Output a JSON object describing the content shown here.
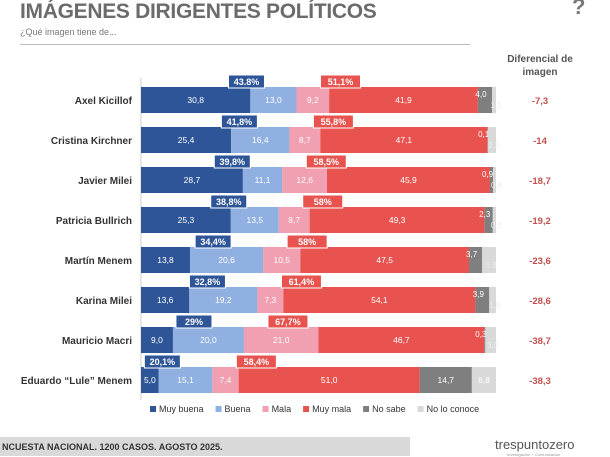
{
  "header": {
    "title": "IMÁGENES DIRIGENTES POLÍTICOS",
    "subtitle": "¿Qué imagen tiene de..."
  },
  "footer": {
    "note": "NCUESTA NACIONAL. 1200 CASOS. AGOSTO 2025.",
    "brand": "trespuntozero",
    "brand_tagline": "Investigación + Comunicación"
  },
  "chart_data": {
    "type": "bar",
    "orientation": "horizontal-stacked-100",
    "diff_header": [
      "Diferencial de",
      "imagen"
    ],
    "categories": [
      "Axel Kicillof",
      "Cristina Kirchner",
      "Javier Milei",
      "Patricia Bullrich",
      "Martín Menem",
      "Karina Milei",
      "Mauricio Macri",
      "Eduardo “Lule” Menem"
    ],
    "series": [
      {
        "name": "Muy buena",
        "color": "#2e5597",
        "values": [
          30.8,
          25.4,
          28.7,
          25.3,
          13.8,
          13.6,
          9.0,
          5.0
        ],
        "labels": [
          "30,8",
          "25,4",
          "28,7",
          "25,3",
          "13,8",
          "13,6",
          "9,0",
          "5,0"
        ]
      },
      {
        "name": "Buena",
        "color": "#8fb0e0",
        "values": [
          13.0,
          16.4,
          11.1,
          13.5,
          20.6,
          19.2,
          20.0,
          15.1
        ],
        "labels": [
          "13,0",
          "16,4",
          "11,1",
          "13,5",
          "20,6",
          "19,2",
          "20,0",
          "15,1"
        ]
      },
      {
        "name": "Mala",
        "color": "#f0a0b0",
        "values": [
          9.2,
          8.7,
          12.6,
          8.7,
          10.5,
          7.3,
          21.0,
          7.4
        ],
        "labels": [
          "9,2",
          "8,7",
          "12,6",
          "8,7",
          "10,5",
          "7,3",
          "21,0",
          "7,4"
        ]
      },
      {
        "name": "Muy mala",
        "color": "#e8534f",
        "values": [
          41.9,
          47.1,
          45.9,
          49.3,
          47.5,
          54.1,
          46.7,
          51.0
        ],
        "labels": [
          "41,9",
          "47,1",
          "45,9",
          "49,3",
          "47,5",
          "54,1",
          "46,7",
          "51,0"
        ]
      },
      {
        "name": "No  sabe",
        "color": "#7f7f7f",
        "values": [
          4.0,
          0.1,
          0.9,
          2.3,
          3.7,
          3.9,
          0.3,
          14.7
        ],
        "labels": [
          "4,0",
          "0,1",
          "0,9",
          "2,3",
          "3,7",
          "3,9",
          "0,3",
          "14,7"
        ]
      },
      {
        "name": "No lo conoce",
        "color": "#d9d9d9",
        "values": [
          1.1,
          2.3,
          0.8,
          0.9,
          3.9,
          1.9,
          3.0,
          6.8
        ],
        "labels": [
          "1,1",
          "2,3",
          "0,8",
          "0,9",
          "3,9",
          "1,9",
          "3,0",
          "6,8"
        ]
      }
    ],
    "positive_totals": [
      "43.8%",
      "41,8%",
      "39,8%",
      "38,8%",
      "34,4%",
      "32,8%",
      "29%",
      "20,1%"
    ],
    "negative_totals": [
      "51,1%",
      "55,8%",
      "58,5%",
      "58%",
      "58%",
      "61,4%",
      "67,7%",
      "58,4%"
    ],
    "differential": [
      "-7,3",
      "-14",
      "-18,7",
      "-19,2",
      "-23,6",
      "-28,6",
      "-38,7",
      "-38,3"
    ],
    "positive_color": "#2e5597",
    "negative_color": "#e8534f",
    "diff_color": "#c0504d",
    "legend_position": "bottom",
    "xlim": [
      0,
      100
    ]
  }
}
